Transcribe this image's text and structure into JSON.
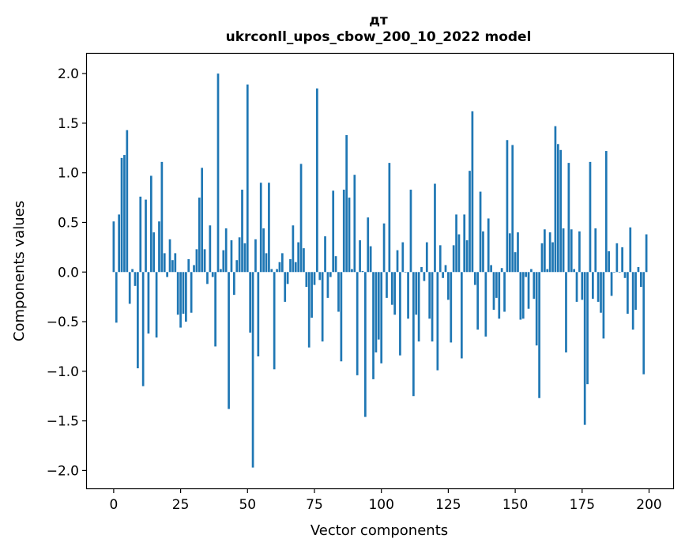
{
  "chart_data": {
    "type": "bar",
    "title_line1": "дт",
    "title_line2": "ukrconll_upos_cbow_200_10_2022 model",
    "xlabel": "Vector components",
    "ylabel": "Components values",
    "xlim": [
      -10,
      209
    ],
    "ylim": [
      -2.18,
      2.2
    ],
    "xticks": [
      0,
      25,
      50,
      75,
      100,
      125,
      150,
      175,
      200
    ],
    "xtick_labels": [
      "0",
      "25",
      "50",
      "75",
      "100",
      "125",
      "150",
      "175",
      "200"
    ],
    "yticks": [
      2.0,
      1.5,
      1.0,
      0.5,
      0.0,
      -0.5,
      -1.0,
      -1.5,
      -2.0
    ],
    "ytick_labels": [
      "2.0",
      "1.5",
      "1.0",
      "0.5",
      "0.0",
      "−0.5",
      "−1.0",
      "−1.5",
      "−2.0"
    ],
    "bar_color": "#1f77b4",
    "values": [
      0.51,
      -0.51,
      0.58,
      1.15,
      1.18,
      1.43,
      -0.32,
      0.03,
      -0.14,
      -0.97,
      0.76,
      -1.15,
      0.73,
      -0.62,
      0.97,
      0.4,
      -0.66,
      0.51,
      1.11,
      0.19,
      -0.05,
      0.33,
      0.12,
      0.19,
      -0.43,
      -0.56,
      -0.42,
      -0.5,
      0.13,
      -0.41,
      0.07,
      0.23,
      0.75,
      1.05,
      0.23,
      -0.12,
      0.47,
      -0.05,
      -0.75,
      2.0,
      0.03,
      0.22,
      0.44,
      -1.38,
      0.32,
      -0.23,
      0.12,
      0.35,
      0.83,
      0.29,
      1.89,
      -0.61,
      -1.97,
      0.33,
      -0.85,
      0.9,
      0.44,
      0.19,
      0.9,
      0.03,
      -0.98,
      0.03,
      0.1,
      0.19,
      -0.3,
      -0.12,
      0.13,
      0.47,
      0.1,
      0.3,
      1.09,
      0.24,
      -0.15,
      -0.76,
      -0.46,
      -0.13,
      1.85,
      -0.08,
      -0.7,
      0.36,
      -0.26,
      -0.05,
      0.82,
      0.16,
      -0.4,
      -0.9,
      0.83,
      1.38,
      0.75,
      0.03,
      0.98,
      -1.04,
      0.32,
      0.01,
      -1.46,
      0.55,
      0.26,
      -1.08,
      -0.81,
      -0.68,
      -0.92,
      0.49,
      -0.26,
      1.1,
      -0.33,
      -0.43,
      0.22,
      -0.84,
      0.3,
      0.0,
      -0.47,
      0.83,
      -1.25,
      -0.43,
      -0.7,
      0.05,
      -0.09,
      0.3,
      -0.47,
      -0.7,
      0.89,
      -0.99,
      0.27,
      -0.06,
      0.07,
      -0.28,
      -0.71,
      0.27,
      0.58,
      0.38,
      -0.87,
      0.58,
      0.32,
      1.02,
      1.62,
      -0.13,
      -0.58,
      0.81,
      0.41,
      -0.65,
      0.54,
      0.07,
      -0.38,
      -0.26,
      -0.47,
      0.04,
      -0.4,
      1.33,
      0.39,
      1.28,
      0.2,
      0.4,
      -0.48,
      -0.47,
      -0.05,
      -0.37,
      0.03,
      -0.27,
      -0.74,
      -1.27,
      0.29,
      0.43,
      0.03,
      0.4,
      0.3,
      1.47,
      1.29,
      1.23,
      0.44,
      -0.81,
      1.1,
      0.43,
      0.03,
      -0.3,
      0.41,
      -0.28,
      -1.54,
      -1.13,
      1.11,
      -0.27,
      0.44,
      -0.3,
      -0.41,
      -0.67,
      1.22,
      0.21,
      -0.24,
      0.0,
      0.29,
      0.0,
      0.25,
      -0.06,
      -0.42,
      0.45,
      -0.58,
      -0.38,
      0.05,
      -0.15,
      -1.03,
      0.38
    ]
  }
}
